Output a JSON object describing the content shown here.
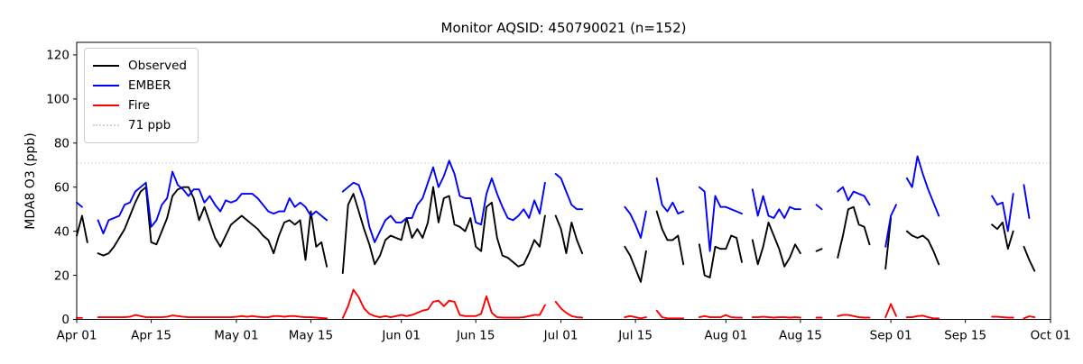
{
  "chart_data": {
    "type": "line",
    "title": "Monitor AQSID: 450790021 (n=152)",
    "xlabel": "",
    "ylabel": "MDA8 O3 (ppb)",
    "ylim": [
      0,
      125.7
    ],
    "yticks": [
      0,
      20,
      40,
      60,
      80,
      100,
      120
    ],
    "x_days": 183,
    "x_start": "Apr 01",
    "x_ticks": [
      {
        "label": "Apr 01",
        "day": 0
      },
      {
        "label": "Apr 15",
        "day": 14
      },
      {
        "label": "May 01",
        "day": 30
      },
      {
        "label": "May 15",
        "day": 44
      },
      {
        "label": "Jun 01",
        "day": 61
      },
      {
        "label": "Jun 15",
        "day": 75
      },
      {
        "label": "Jul 01",
        "day": 91
      },
      {
        "label": "Jul 15",
        "day": 105
      },
      {
        "label": "Aug 01",
        "day": 122
      },
      {
        "label": "Aug 15",
        "day": 136
      },
      {
        "label": "Sep 01",
        "day": 153
      },
      {
        "label": "Sep 15",
        "day": 167
      },
      {
        "label": "Oct 01",
        "day": 183
      }
    ],
    "threshold": {
      "label": "71 ppb",
      "value": 71,
      "color": "#d3d3d3",
      "style": "dotted"
    },
    "grid": false,
    "legend_position": "upper-left",
    "legend": [
      {
        "label": "Observed",
        "color": "#000000",
        "dotted": false
      },
      {
        "label": "EMBER",
        "color": "#0000ff",
        "dotted": false
      },
      {
        "label": "Fire",
        "color": "#ff0000",
        "dotted": false
      },
      {
        "label": "71 ppb",
        "color": "#d3d3d3",
        "dotted": true
      }
    ],
    "series": [
      {
        "name": "Observed",
        "color": "#000000",
        "values": [
          38,
          47,
          35,
          null,
          30,
          29,
          30,
          33,
          37,
          41,
          47,
          53,
          58,
          60,
          35,
          34,
          40,
          46,
          56,
          59,
          60,
          60,
          55,
          45,
          51,
          44,
          37,
          33,
          38,
          43,
          45,
          47,
          45,
          43,
          41,
          38,
          36,
          30,
          38,
          44,
          45,
          43,
          45,
          27,
          49,
          33,
          35,
          24,
          null,
          null,
          21,
          52,
          57,
          49,
          41,
          34,
          25,
          29,
          36,
          38,
          37,
          36,
          46,
          37,
          41,
          37,
          44,
          60,
          44,
          55,
          56,
          43,
          42,
          40,
          46,
          33,
          31,
          51,
          53,
          37,
          29,
          28,
          26,
          24,
          25,
          30,
          36,
          33,
          47,
          null,
          47,
          41,
          30,
          44,
          36,
          30,
          null,
          null,
          null,
          null,
          null,
          null,
          null,
          33,
          29,
          23,
          17,
          31,
          null,
          49,
          41,
          36,
          36,
          38,
          25,
          null,
          null,
          34,
          20,
          19,
          33,
          32,
          32,
          38,
          37,
          26,
          null,
          36,
          25,
          33,
          44,
          38,
          32,
          24,
          28,
          34,
          30,
          null,
          null,
          31,
          32,
          null,
          null,
          28,
          38,
          50,
          51,
          43,
          42,
          34,
          null,
          null,
          23,
          46,
          null,
          null,
          40,
          38,
          37,
          38,
          36,
          31,
          25,
          null,
          null,
          null,
          null,
          null,
          null,
          null,
          null,
          null,
          43,
          41,
          44,
          32,
          40,
          null,
          33,
          27,
          22,
          null,
          null
        ]
      },
      {
        "name": "EMBER",
        "color": "#0000ff",
        "values": [
          53,
          51,
          null,
          null,
          45,
          39,
          45,
          46,
          47,
          52,
          53,
          58,
          60,
          62,
          42,
          45,
          52,
          55,
          67,
          61,
          59,
          56,
          59,
          59,
          53,
          56,
          52,
          49,
          54,
          53,
          54,
          57,
          57,
          57,
          55,
          52,
          49,
          48,
          49,
          49,
          55,
          51,
          53,
          51,
          47,
          49,
          47,
          45,
          null,
          null,
          58,
          60,
          62,
          61,
          54,
          42,
          35,
          40,
          45,
          47,
          44,
          44,
          46,
          46,
          52,
          55,
          62,
          69,
          60,
          65,
          72,
          66,
          56,
          55,
          55,
          44,
          43,
          57,
          64,
          57,
          51,
          46,
          45,
          47,
          50,
          46,
          54,
          48,
          62,
          null,
          66,
          64,
          58,
          52,
          50,
          50,
          null,
          null,
          null,
          null,
          null,
          null,
          null,
          51,
          48,
          43,
          37,
          49,
          null,
          64,
          52,
          49,
          53,
          48,
          49,
          null,
          null,
          60,
          58,
          31,
          56,
          51,
          51,
          50,
          49,
          48,
          null,
          59,
          47,
          56,
          47,
          46,
          50,
          46,
          51,
          50,
          50,
          null,
          null,
          52,
          50,
          null,
          null,
          58,
          60,
          54,
          58,
          57,
          56,
          52,
          null,
          null,
          33,
          47,
          52,
          null,
          64,
          60,
          74,
          66,
          59,
          53,
          47,
          null,
          null,
          null,
          null,
          null,
          null,
          null,
          null,
          null,
          56,
          52,
          53,
          40,
          57,
          null,
          61,
          46,
          null,
          null,
          null
        ]
      },
      {
        "name": "Fire",
        "color": "#ff0000",
        "values": [
          0.7,
          0.7,
          null,
          null,
          1,
          1,
          1,
          1,
          1,
          1,
          1.2,
          2,
          1.5,
          1,
          1,
          1,
          1,
          1.2,
          1.8,
          1.5,
          1.2,
          1,
          1,
          1,
          1,
          1,
          1,
          1,
          1,
          1,
          1.2,
          1.5,
          1.2,
          1.5,
          1.2,
          1,
          1,
          1.5,
          1.5,
          1.2,
          1.5,
          1.5,
          1.2,
          1,
          1,
          0.8,
          0.6,
          0.5,
          null,
          null,
          0.6,
          6,
          13.5,
          10,
          5,
          2.5,
          1.5,
          1,
          1.5,
          1,
          1.5,
          2,
          1.5,
          2,
          3,
          4,
          4.5,
          8,
          8.5,
          6,
          8.5,
          8,
          2,
          1.5,
          1.5,
          1.5,
          2.5,
          10.5,
          3,
          1,
          0.8,
          0.8,
          0.8,
          0.8,
          1,
          1.5,
          2,
          2,
          6.5,
          null,
          8,
          5,
          3,
          1.5,
          1,
          0.8,
          null,
          null,
          null,
          null,
          null,
          null,
          null,
          1,
          1.5,
          1,
          0.5,
          1,
          null,
          4,
          1,
          0.5,
          0.5,
          0.5,
          0.5,
          null,
          null,
          1,
          1.5,
          1,
          1,
          1,
          2,
          1,
          0.8,
          0.8,
          null,
          1,
          1,
          1.2,
          1,
          0.8,
          1,
          1,
          0.8,
          1,
          0.8,
          null,
          null,
          0.8,
          0.8,
          null,
          null,
          1.5,
          2,
          2,
          1.5,
          1,
          0.8,
          0.8,
          null,
          null,
          1,
          7,
          1.5,
          null,
          1,
          1,
          1.5,
          1.7,
          1,
          0.5,
          0.5,
          null,
          null,
          null,
          null,
          null,
          null,
          null,
          null,
          null,
          1.2,
          1.2,
          1,
          0.8,
          0.8,
          null,
          0.5,
          1.4,
          1,
          null,
          null
        ]
      }
    ]
  }
}
